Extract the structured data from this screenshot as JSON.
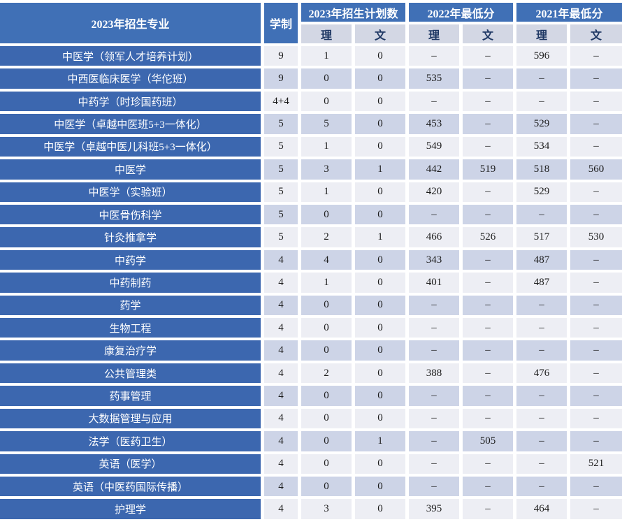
{
  "table": {
    "header": {
      "major": "2023年招生专业",
      "duration": "学制",
      "groups": [
        {
          "label": "2023年招生计划数"
        },
        {
          "label": "2022年最低分"
        },
        {
          "label": "2021年最低分"
        }
      ],
      "sub_science": "理",
      "sub_arts": "文"
    },
    "colors": {
      "header_blue": "#4070B6",
      "row_blue": "#3C67AF",
      "subheader_bg": "#D3D7E4",
      "subheader_text": "#1F3864",
      "row_light": "#EDEEF4",
      "row_dark": "#CDD4E7"
    },
    "rows": [
      {
        "major": "中医学（领军人才培养计划）",
        "duration": "9",
        "values": [
          "1",
          "0",
          "–",
          "–",
          "596",
          "–"
        ]
      },
      {
        "major": "中西医临床医学（华佗班）",
        "duration": "9",
        "values": [
          "0",
          "0",
          "535",
          "–",
          "–",
          "–"
        ]
      },
      {
        "major": "中药学（时珍国药班）",
        "duration": "4+4",
        "values": [
          "0",
          "0",
          "–",
          "–",
          "–",
          "–"
        ]
      },
      {
        "major": "中医学（卓越中医班5+3一体化）",
        "duration": "5",
        "values": [
          "5",
          "0",
          "453",
          "–",
          "529",
          "–"
        ]
      },
      {
        "major": "中医学（卓越中医儿科班5+3一体化）",
        "duration": "5",
        "values": [
          "1",
          "0",
          "549",
          "–",
          "534",
          "–"
        ]
      },
      {
        "major": "中医学",
        "duration": "5",
        "values": [
          "3",
          "1",
          "442",
          "519",
          "518",
          "560"
        ]
      },
      {
        "major": "中医学（实验班）",
        "duration": "5",
        "values": [
          "1",
          "0",
          "420",
          "–",
          "529",
          "–"
        ]
      },
      {
        "major": "中医骨伤科学",
        "duration": "5",
        "values": [
          "0",
          "0",
          "–",
          "–",
          "–",
          "–"
        ]
      },
      {
        "major": "针灸推拿学",
        "duration": "5",
        "values": [
          "2",
          "1",
          "466",
          "526",
          "517",
          "530"
        ]
      },
      {
        "major": "中药学",
        "duration": "4",
        "values": [
          "4",
          "0",
          "343",
          "–",
          "487",
          "–"
        ]
      },
      {
        "major": "中药制药",
        "duration": "4",
        "values": [
          "1",
          "0",
          "401",
          "–",
          "487",
          "–"
        ]
      },
      {
        "major": "药学",
        "duration": "4",
        "values": [
          "0",
          "0",
          "–",
          "–",
          "–",
          "–"
        ]
      },
      {
        "major": "生物工程",
        "duration": "4",
        "values": [
          "0",
          "0",
          "–",
          "–",
          "–",
          "–"
        ]
      },
      {
        "major": "康复治疗学",
        "duration": "4",
        "values": [
          "0",
          "0",
          "–",
          "–",
          "–",
          "–"
        ]
      },
      {
        "major": "公共管理类",
        "duration": "4",
        "values": [
          "2",
          "0",
          "388",
          "–",
          "476",
          "–"
        ]
      },
      {
        "major": "药事管理",
        "duration": "4",
        "values": [
          "0",
          "0",
          "–",
          "–",
          "–",
          "–"
        ]
      },
      {
        "major": "大数据管理与应用",
        "duration": "4",
        "values": [
          "0",
          "0",
          "–",
          "–",
          "–",
          "–"
        ]
      },
      {
        "major": "法学（医药卫生）",
        "duration": "4",
        "values": [
          "0",
          "1",
          "–",
          "505",
          "–",
          "–"
        ]
      },
      {
        "major": "英语（医学）",
        "duration": "4",
        "values": [
          "0",
          "0",
          "–",
          "–",
          "–",
          "521"
        ]
      },
      {
        "major": "英语（中医药国际传播）",
        "duration": "4",
        "values": [
          "0",
          "0",
          "–",
          "–",
          "–",
          "–"
        ]
      },
      {
        "major": "护理学",
        "duration": "4",
        "values": [
          "3",
          "0",
          "395",
          "–",
          "464",
          "–"
        ]
      }
    ]
  }
}
